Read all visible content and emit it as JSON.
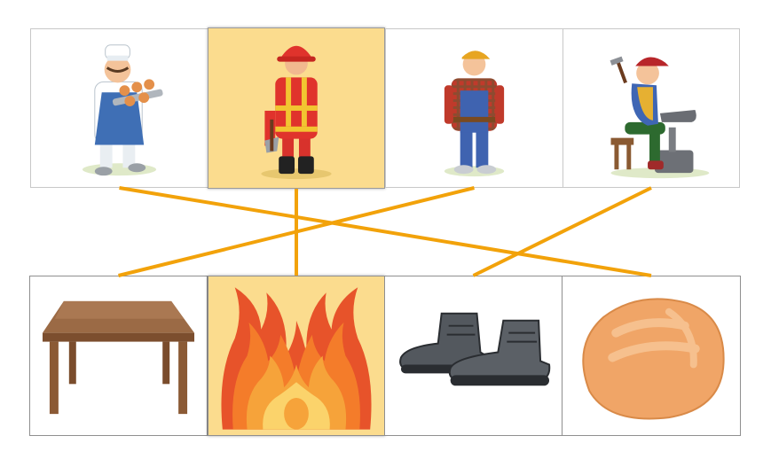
{
  "activity": {
    "type": "matching",
    "line_color": "#f2a20a",
    "highlight_color": "#fbdc8e",
    "top_row": [
      {
        "id": "baker",
        "icon": "baker-icon"
      },
      {
        "id": "firefighter",
        "icon": "firefighter-icon"
      },
      {
        "id": "carpenter",
        "icon": "carpenter-icon"
      },
      {
        "id": "shoemaker",
        "icon": "shoemaker-icon"
      }
    ],
    "bottom_row": [
      {
        "id": "table",
        "icon": "table-icon"
      },
      {
        "id": "fire",
        "icon": "fire-icon"
      },
      {
        "id": "boots",
        "icon": "boots-icon"
      },
      {
        "id": "bread",
        "icon": "bread-icon"
      }
    ],
    "matches": [
      {
        "top": 0,
        "bottom": 3
      },
      {
        "top": 1,
        "bottom": 1
      },
      {
        "top": 2,
        "bottom": 0
      },
      {
        "top": 3,
        "bottom": 2
      }
    ]
  }
}
